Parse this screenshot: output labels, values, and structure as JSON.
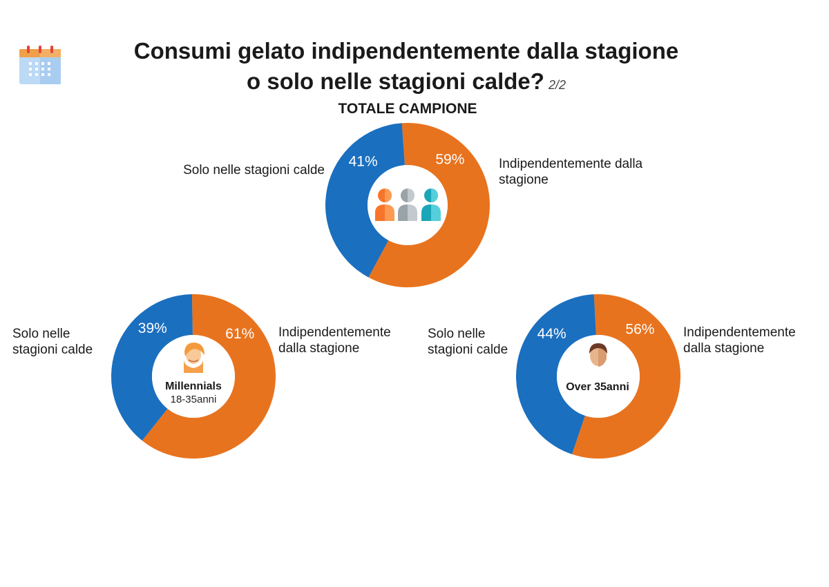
{
  "title": {
    "line1": "Consumi gelato indipendentemente dalla stagione",
    "line2": "o solo nelle stagioni calde?",
    "page_indicator": "2/2"
  },
  "icons": {
    "header": "calendar-icon",
    "total": "group-people-icon",
    "millennials": "young-person-avatar-icon",
    "over": "adult-man-avatar-icon"
  },
  "colors": {
    "orange": "#E8731E",
    "blue": "#1A6FBF",
    "label_text": "#ffffff"
  },
  "sections": {
    "total": {
      "title": "TOTALE CAMPIONE",
      "left_label": "Solo nelle stagioni calde",
      "right_label": "Indipendentemente dalla stagione"
    },
    "millennials": {
      "center_title": "Millennials",
      "center_sub": "18-35anni",
      "left_label": "Solo nelle stagioni calde",
      "right_label": "Indipendentemente dalla stagione"
    },
    "over": {
      "center_title": "Over 35anni",
      "left_label": "Solo nelle stagioni calde",
      "right_label": "Indipendentemente dalla stagione"
    }
  },
  "chart_data": [
    {
      "type": "pie",
      "subtitle": "TOTALE CAMPIONE",
      "slices": [
        {
          "label": "Indipendentemente dalla stagione",
          "value": 59,
          "display": "59%",
          "color": "#E8731E"
        },
        {
          "label": "Solo nelle stagioni calde",
          "value": 41,
          "display": "41%",
          "color": "#1A6FBF"
        }
      ]
    },
    {
      "type": "pie",
      "subtitle": "Millennials 18-35anni",
      "slices": [
        {
          "label": "Indipendentemente dalla stagione",
          "value": 61,
          "display": "61%",
          "color": "#E8731E"
        },
        {
          "label": "Solo nelle stagioni calde",
          "value": 39,
          "display": "39%",
          "color": "#1A6FBF"
        }
      ]
    },
    {
      "type": "pie",
      "subtitle": "Over 35anni",
      "slices": [
        {
          "label": "Indipendentemente dalla stagione",
          "value": 56,
          "display": "56%",
          "color": "#E8731E"
        },
        {
          "label": "Solo nelle stagioni calde",
          "value": 44,
          "display": "44%",
          "color": "#1A6FBF"
        }
      ]
    }
  ]
}
